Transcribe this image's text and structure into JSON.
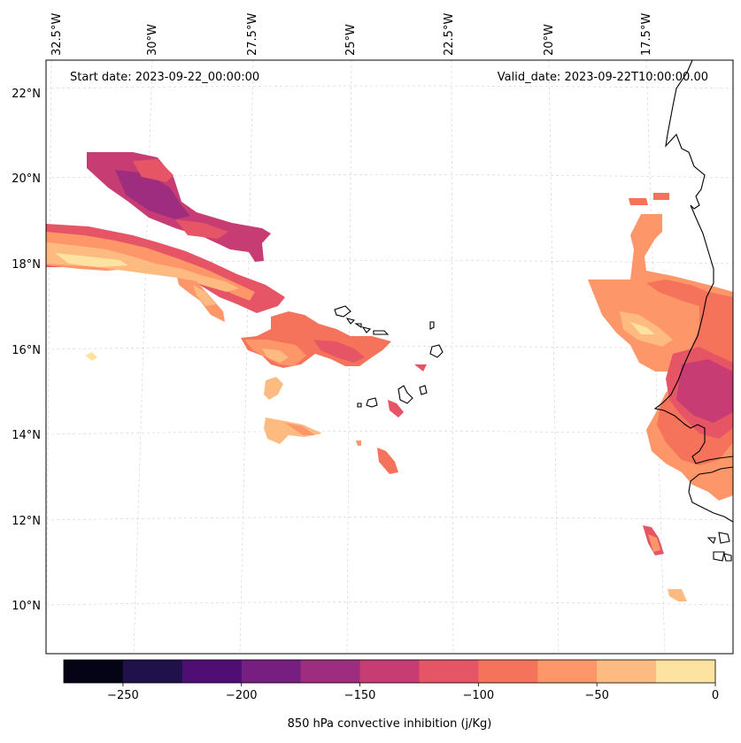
{
  "map": {
    "start_label": "Start date: 2023-09-22_00:00:00",
    "valid_label": "Valid_date: 2023-09-22T10:00:00.00",
    "lon_labels": [
      "32.5°W",
      "30°W",
      "27.5°W",
      "25°W",
      "22.5°W",
      "20°W",
      "17.5°W"
    ],
    "lat_labels": [
      "22°N",
      "20°N",
      "18°N",
      "16°N",
      "14°N",
      "12°N",
      "10°N"
    ],
    "variable": "850 hPa convective inhibition (j/Kg)"
  },
  "colorbar": {
    "label": "850 hPa convective inhibition (j/Kg)",
    "levels": [
      -275,
      -250,
      -225,
      -200,
      -175,
      -150,
      -125,
      -100,
      -75,
      -50,
      -25,
      0
    ],
    "tick_labels": [
      "−250",
      "−200",
      "−150",
      "−100",
      "−50",
      "0"
    ],
    "colors": [
      "#050417",
      "#20114b",
      "#4f0e74",
      "#761f81",
      "#9e2d7f",
      "#c73d73",
      "#e55565",
      "#f6735b",
      "#fd9668",
      "#febb81",
      "#fde3a2"
    ]
  }
}
